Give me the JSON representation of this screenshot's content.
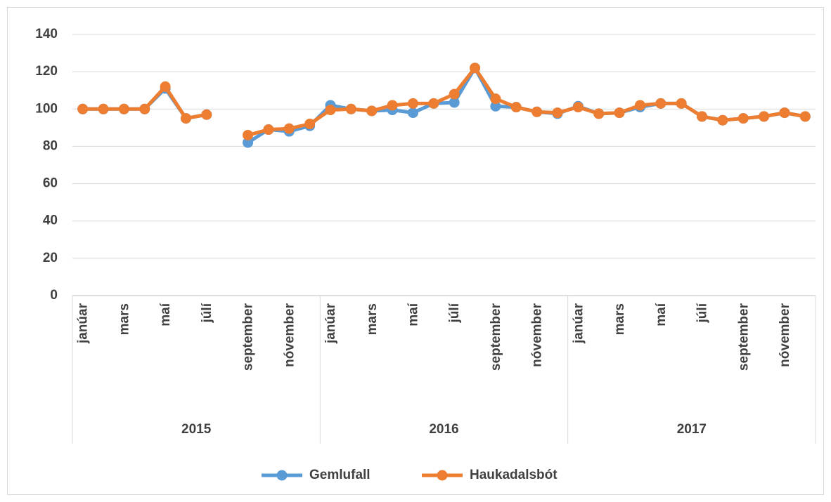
{
  "chart_data": {
    "type": "line",
    "categories": [
      "janúar",
      null,
      "mars",
      null,
      "maí",
      null,
      "júlí",
      null,
      "september",
      null,
      "nóvember",
      null,
      "janúar",
      null,
      "mars",
      null,
      "maí",
      null,
      "júlí",
      null,
      "september",
      null,
      "nóvember",
      null,
      "janúar",
      null,
      "mars",
      null,
      "maí",
      null,
      "júlí",
      null,
      "september",
      null,
      "nóvember",
      null
    ],
    "category_groups": [
      "2015",
      "2016",
      "2017"
    ],
    "series": [
      {
        "name": "Gemlufall",
        "color": "#5b9bd5",
        "values": [
          100,
          100,
          100,
          100,
          111,
          95,
          97,
          null,
          82,
          89,
          88,
          91,
          102,
          100,
          99,
          99.5,
          98,
          103,
          103.5,
          122,
          101.5,
          101,
          98.5,
          97.5,
          101.5,
          97.5,
          98,
          101,
          103,
          103,
          96,
          94,
          95,
          96,
          98,
          96
        ]
      },
      {
        "name": "Haukadalsbót",
        "color": "#ed7d31",
        "values": [
          100,
          100,
          100,
          100,
          112,
          95,
          97,
          null,
          86,
          89,
          89.5,
          92,
          99.5,
          100,
          99,
          102,
          103,
          103,
          108,
          122,
          105.5,
          101,
          98.5,
          98,
          101,
          97.5,
          98,
          102,
          103,
          103,
          96,
          94,
          95,
          96,
          98,
          96
        ]
      }
    ],
    "ylim": [
      0,
      140
    ],
    "yticks": [
      0,
      20,
      40,
      60,
      80,
      100,
      120,
      140
    ],
    "grid": true,
    "legend": "bottom"
  }
}
